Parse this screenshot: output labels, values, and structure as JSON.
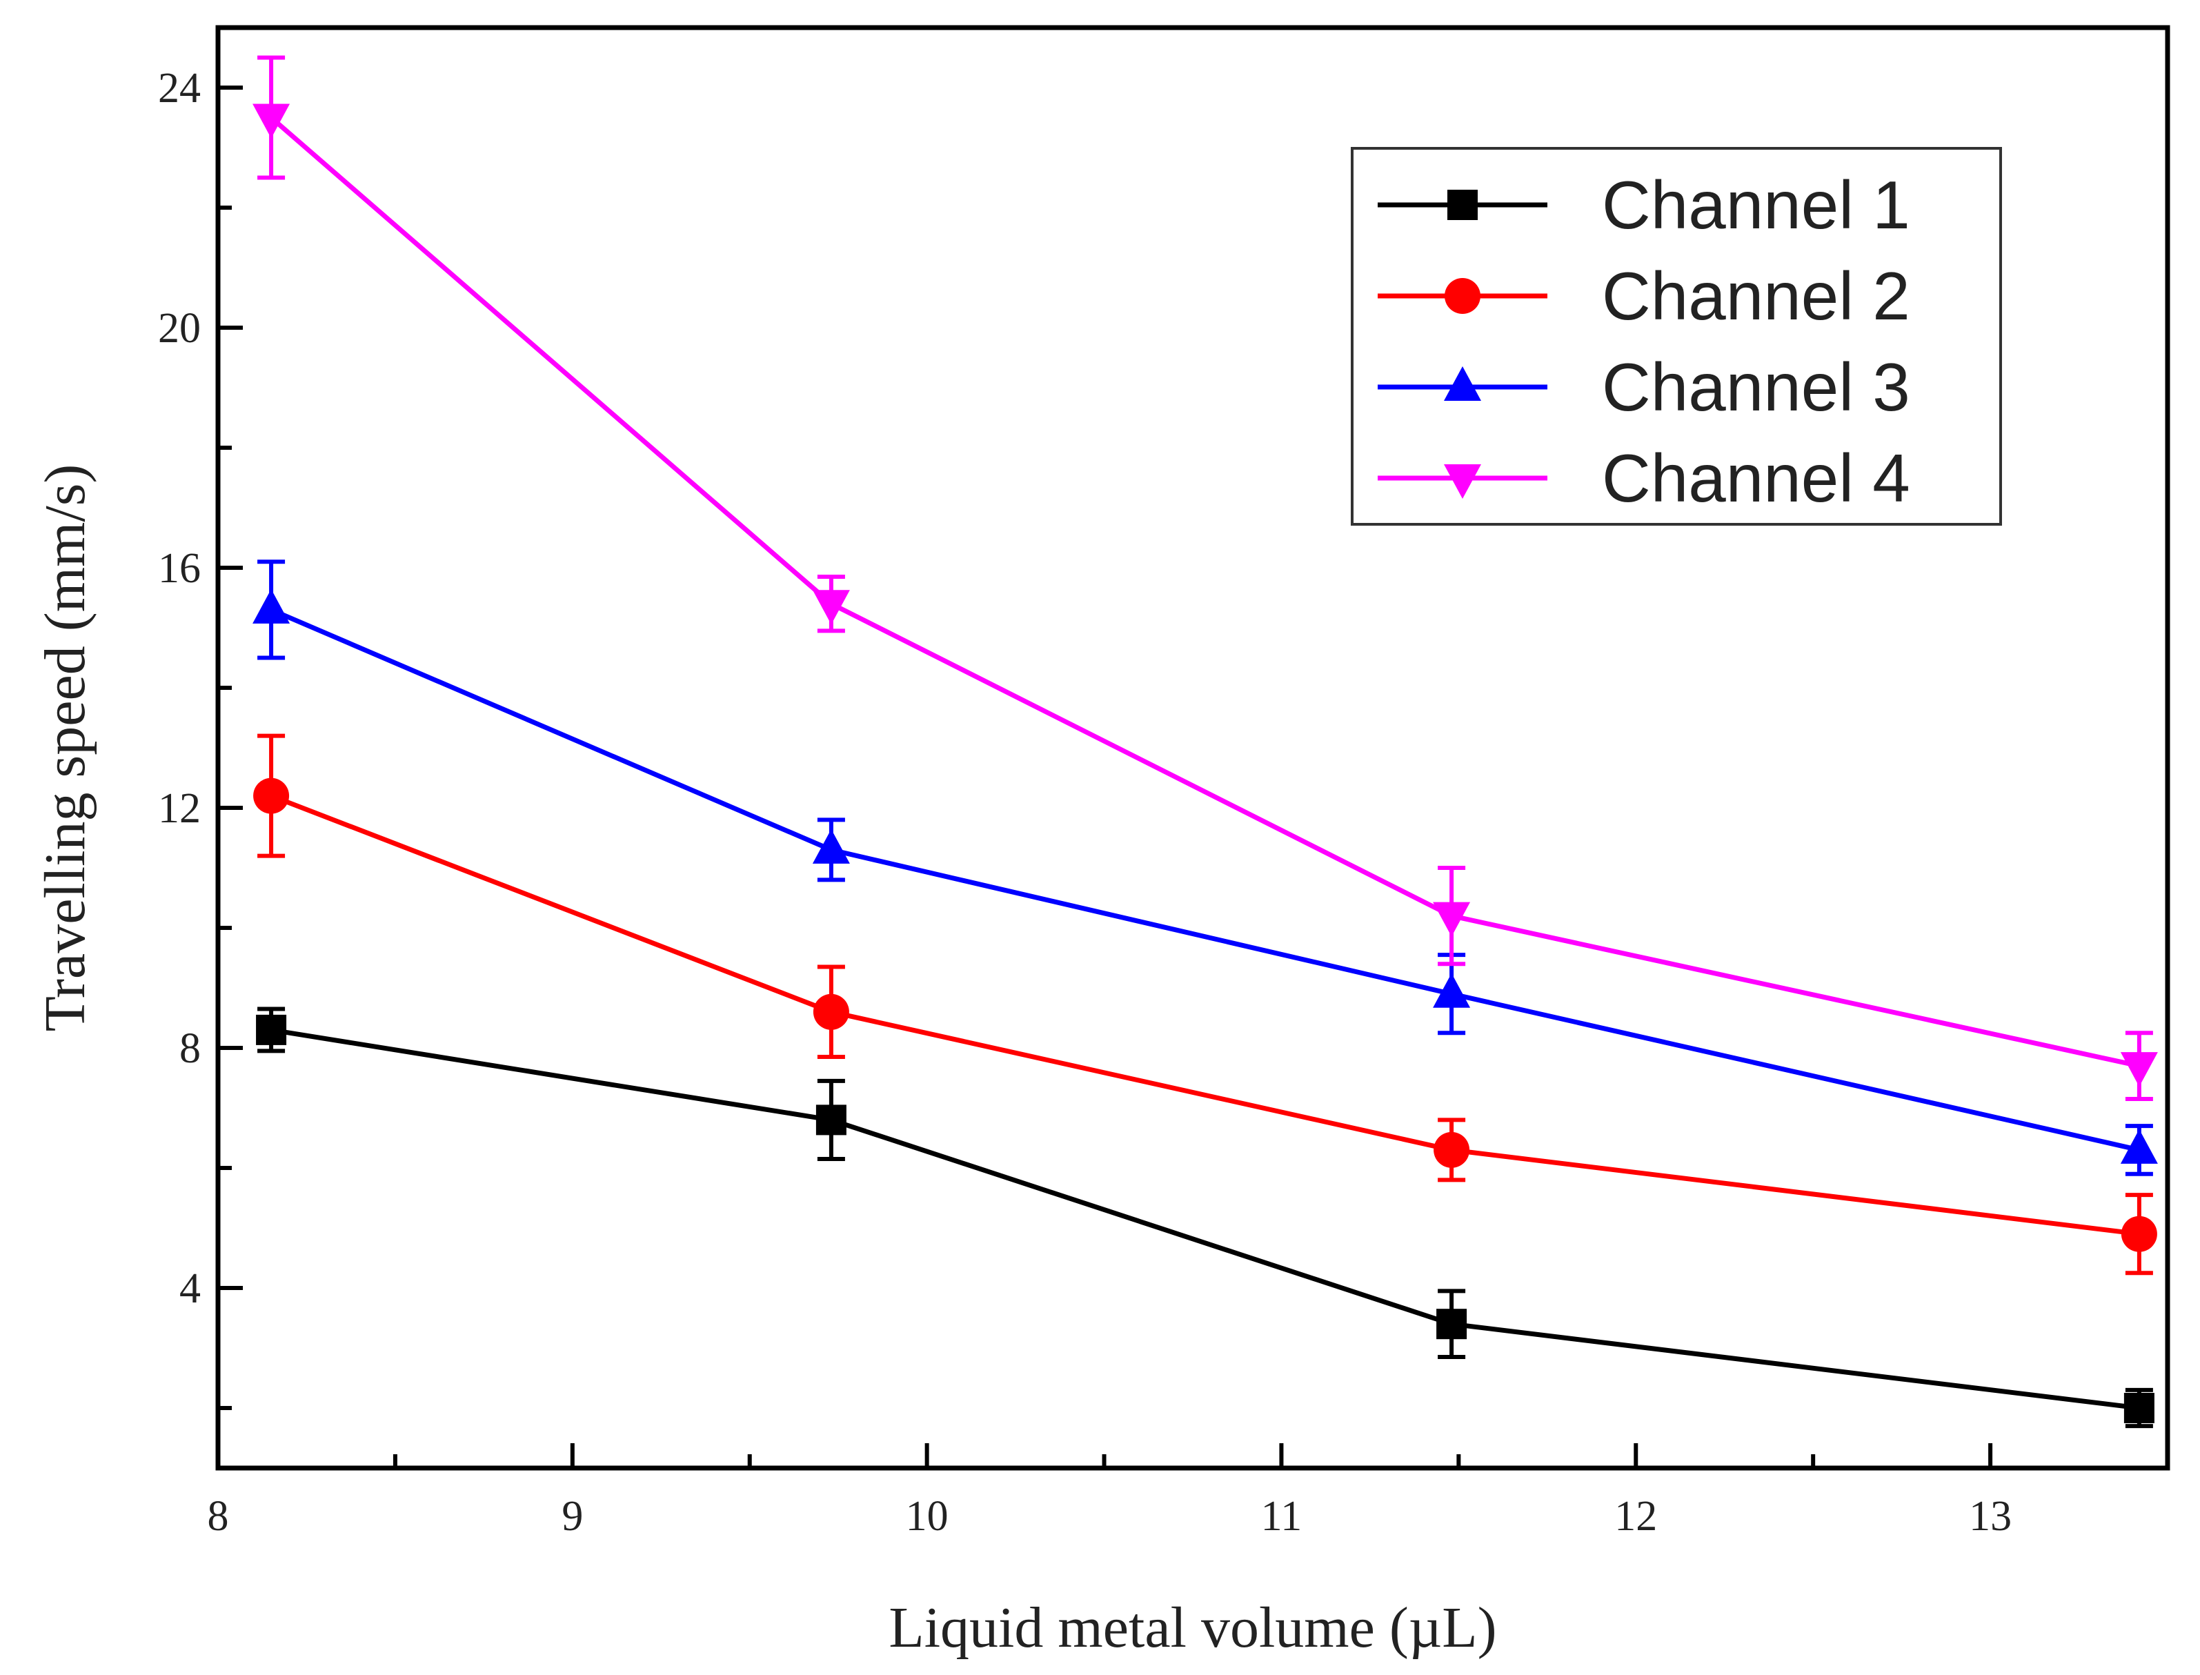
{
  "chart_data": {
    "type": "line",
    "title": "",
    "xlabel": "Liquid metal volume (µL)",
    "ylabel": "Travelling speed (mm/s)",
    "xlim": [
      8,
      13.5
    ],
    "ylim": [
      1,
      25
    ],
    "x_ticks": [
      8,
      9,
      10,
      11,
      12,
      13
    ],
    "x_tick_labels": [
      "8",
      "9",
      "10",
      "11",
      "12",
      "13"
    ],
    "y_ticks": [
      4,
      8,
      12,
      16,
      20,
      24
    ],
    "y_tick_labels": [
      "4",
      "8",
      "12",
      "16",
      "20",
      "24"
    ],
    "grid": false,
    "legend_position": "top-right",
    "x": [
      8.15,
      9.73,
      11.48,
      13.42
    ],
    "series": [
      {
        "name": "Channel 1",
        "color": "#000000",
        "marker": "square",
        "values": [
          8.3,
          6.8,
          3.4,
          2.0
        ],
        "errors": [
          0.35,
          0.65,
          0.55,
          0.3
        ]
      },
      {
        "name": "Channel 2",
        "color": "#ff0000",
        "marker": "circle",
        "values": [
          12.2,
          8.6,
          6.3,
          4.9
        ],
        "errors": [
          1.0,
          0.75,
          0.5,
          0.65
        ]
      },
      {
        "name": "Channel 3",
        "color": "#0000ff",
        "marker": "triangle-up",
        "values": [
          15.3,
          11.3,
          8.9,
          6.3
        ],
        "errors": [
          0.8,
          0.5,
          0.65,
          0.4
        ]
      },
      {
        "name": "Channel 4",
        "color": "#ff00ff",
        "marker": "triangle-down",
        "values": [
          23.5,
          15.4,
          10.2,
          7.7
        ],
        "errors": [
          1.0,
          0.45,
          0.8,
          0.55
        ]
      }
    ]
  }
}
